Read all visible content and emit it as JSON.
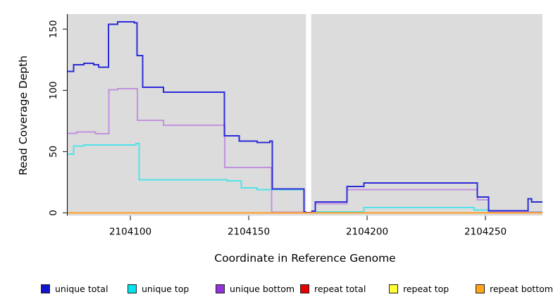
{
  "chart_data": {
    "type": "line",
    "subtype": "step-after",
    "title": "",
    "xlabel": "Coordinate in Reference Genome",
    "ylabel": "Read Coverage Depth",
    "xlim": [
      2104073.5,
      2104274.1
    ],
    "ylim": [
      0,
      162
    ],
    "xticks": [
      2104100,
      2104150,
      2104200,
      2104250
    ],
    "yticks": [
      0,
      50,
      100,
      150
    ],
    "grid": false,
    "panel_bg": "#dcdcdc",
    "gap_x": [
      2104174.2,
      2104176.4
    ],
    "legend_position": "bottom",
    "series": [
      {
        "name": "repeat total",
        "color": "#dd1111",
        "legend_color": "#e60000",
        "points": [
          [
            2104073.5,
            0
          ]
        ]
      },
      {
        "name": "repeat top",
        "color": "#ffff22",
        "legend_color": "#ffff33",
        "points": [
          [
            2104073.5,
            0
          ]
        ]
      },
      {
        "name": "unique top",
        "color": "#4fe3e8",
        "legend_color": "#00e5ee",
        "points": [
          [
            2104073.5,
            48
          ],
          [
            2104076,
            54.5
          ],
          [
            2104080.3,
            55.5
          ],
          [
            2104102.3,
            56.5
          ],
          [
            2104103.7,
            27
          ],
          [
            2104140.9,
            26
          ],
          [
            2104146.8,
            20.5
          ],
          [
            2104153.6,
            19
          ],
          [
            2104173.4,
            1
          ],
          [
            2104198.7,
            4.3
          ],
          [
            2104245.3,
            2.3
          ],
          [
            2104251.3,
            1
          ]
        ]
      },
      {
        "name": "unique bottom",
        "color": "#c192de",
        "legend_color": "#9232d8",
        "points": [
          [
            2104073.5,
            65
          ],
          [
            2104077.4,
            66
          ],
          [
            2104085.2,
            64.5
          ],
          [
            2104090.9,
            100.5
          ],
          [
            2104094.6,
            101.5
          ],
          [
            2104102.9,
            75.5
          ],
          [
            2104114,
            71.5
          ],
          [
            2104139.9,
            37
          ],
          [
            2104159.6,
            0.6
          ],
          [
            2104178.1,
            7.5
          ],
          [
            2104191.5,
            19
          ],
          [
            2104246.5,
            10.5
          ],
          [
            2104251.3,
            0.6
          ]
        ]
      },
      {
        "name": "unique total",
        "color": "#2b2bd8",
        "legend_color": "#1414cc",
        "points": [
          [
            2104073.5,
            115.5
          ],
          [
            2104076,
            121
          ],
          [
            2104080.3,
            122
          ],
          [
            2104084.5,
            121
          ],
          [
            2104086.6,
            119
          ],
          [
            2104090.7,
            154
          ],
          [
            2104094.6,
            156
          ],
          [
            2104101.6,
            155
          ],
          [
            2104102.8,
            128.5
          ],
          [
            2104105.2,
            102.5
          ],
          [
            2104114,
            98.5
          ],
          [
            2104139.7,
            63
          ],
          [
            2104146,
            58.5
          ],
          [
            2104153.6,
            57.5
          ],
          [
            2104158.9,
            58.5
          ],
          [
            2104159.9,
            19.5
          ],
          [
            2104173.4,
            1
          ],
          [
            2104176.5,
            1.5
          ],
          [
            2104178.1,
            9
          ],
          [
            2104191.5,
            21.5
          ],
          [
            2104198.7,
            24.5
          ],
          [
            2104246.5,
            13
          ],
          [
            2104251.3,
            1.7
          ],
          [
            2104268,
            11.5
          ],
          [
            2104269.5,
            9
          ]
        ]
      },
      {
        "name": "repeat bottom",
        "color": "#ff9e1f",
        "legend_color": "#ffa519",
        "points": [
          [
            2104073.5,
            0
          ]
        ]
      }
    ],
    "legend": [
      {
        "label": "unique total",
        "color": "#1414cc"
      },
      {
        "label": "unique top",
        "color": "#00e5ee"
      },
      {
        "label": "unique bottom",
        "color": "#9232d8"
      },
      {
        "label": "repeat total",
        "color": "#e60000"
      },
      {
        "label": "repeat top",
        "color": "#ffff33"
      },
      {
        "label": "repeat bottom",
        "color": "#ffa519"
      }
    ]
  }
}
